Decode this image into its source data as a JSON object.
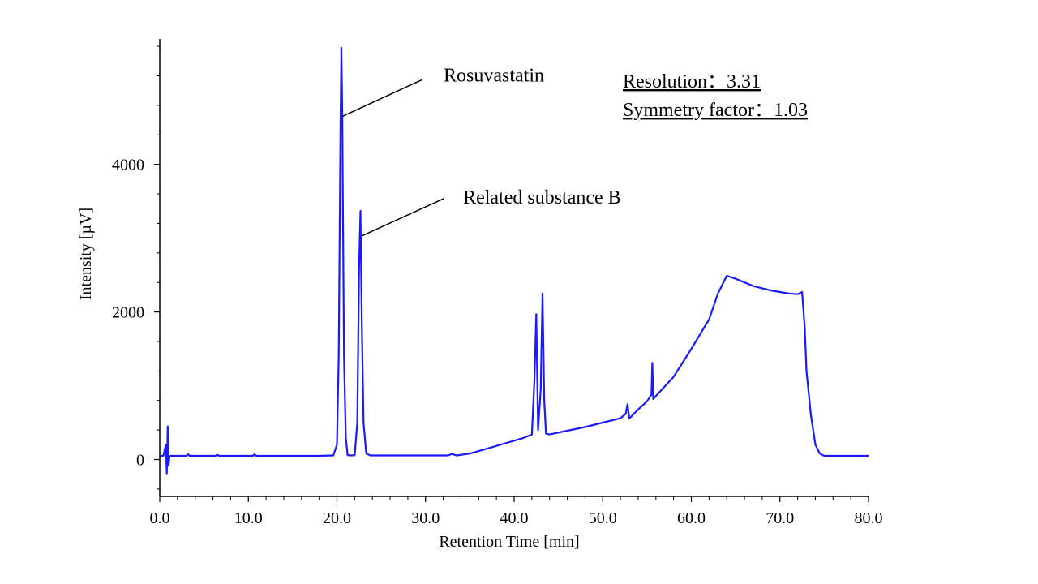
{
  "chart_data": {
    "type": "line",
    "title": "",
    "xlabel": "Retention Time [min]",
    "ylabel": "Intensity [µV]",
    "xlim": [
      0,
      80
    ],
    "ylim": [
      -500,
      5700
    ],
    "x_ticks": [
      0,
      10,
      20,
      30,
      40,
      50,
      60,
      70,
      80
    ],
    "x_tick_labels": [
      "0.0",
      "10.0",
      "20.0",
      "30.0",
      "40.0",
      "50.0",
      "60.0",
      "70.0",
      "80.0"
    ],
    "y_ticks": [
      0,
      2000,
      4000
    ],
    "y_tick_labels": [
      "0",
      "2000",
      "4000"
    ],
    "grid": false,
    "legend": "none",
    "line_color": "#1a1aff",
    "series": [
      {
        "x": [
          0.0,
          0.4,
          0.7,
          0.8,
          0.9,
          1.0,
          1.1,
          1.2,
          1.4,
          2.0,
          3.0,
          3.2,
          3.4,
          5.0,
          6.3,
          6.5,
          6.7,
          8.0,
          10.5,
          10.7,
          10.9,
          12.0,
          15.0,
          18.0,
          19.6,
          20.0,
          20.2,
          20.4,
          20.5,
          20.6,
          20.8,
          21.0,
          21.2,
          21.6,
          22.0,
          22.3,
          22.5,
          22.65,
          22.8,
          23.0,
          23.3,
          23.8,
          26.0,
          30.0,
          32.5,
          33.0,
          33.5,
          35.0,
          37.0,
          39.0,
          41.0,
          42.0,
          42.3,
          42.5,
          42.7,
          43.0,
          43.2,
          43.4,
          43.6,
          44.0,
          46.0,
          48.0,
          50.0,
          52.0,
          52.6,
          52.8,
          53.0,
          53.2,
          54.0,
          55.0,
          55.5,
          55.6,
          55.7,
          56.0,
          58.0,
          60.0,
          62.0,
          63.0,
          64.0,
          65.0,
          67.0,
          69.0,
          70.0,
          71.0,
          72.0,
          72.5,
          72.8,
          73.0,
          73.5,
          74.0,
          74.5,
          75.0,
          75.5,
          76.0,
          78.0,
          80.0
        ],
        "y": [
          50,
          50,
          200,
          -200,
          450,
          -80,
          40,
          50,
          50,
          50,
          50,
          70,
          50,
          50,
          50,
          65,
          50,
          50,
          50,
          70,
          50,
          50,
          50,
          50,
          55,
          200,
          1400,
          4500,
          5580,
          4600,
          1400,
          300,
          60,
          55,
          60,
          500,
          2600,
          3370,
          1900,
          500,
          80,
          55,
          55,
          55,
          55,
          75,
          55,
          80,
          150,
          220,
          290,
          340,
          1100,
          1970,
          400,
          950,
          2250,
          800,
          350,
          340,
          390,
          440,
          500,
          560,
          620,
          750,
          560,
          580,
          680,
          790,
          880,
          1310,
          820,
          860,
          1120,
          1500,
          1900,
          2250,
          2490,
          2450,
          2350,
          2290,
          2270,
          2250,
          2240,
          2270,
          1800,
          1200,
          600,
          200,
          80,
          50,
          50,
          50,
          50,
          50
        ]
      }
    ],
    "annotations": [
      {
        "label": "Rosuvastatin",
        "x": 20.6,
        "y": 4650
      },
      {
        "label": "Related substance B",
        "x": 22.8,
        "y": 3030
      }
    ],
    "stats": {
      "resolution": "Resolution：3.31",
      "symmetry": "Symmetry factor：1.03"
    }
  }
}
